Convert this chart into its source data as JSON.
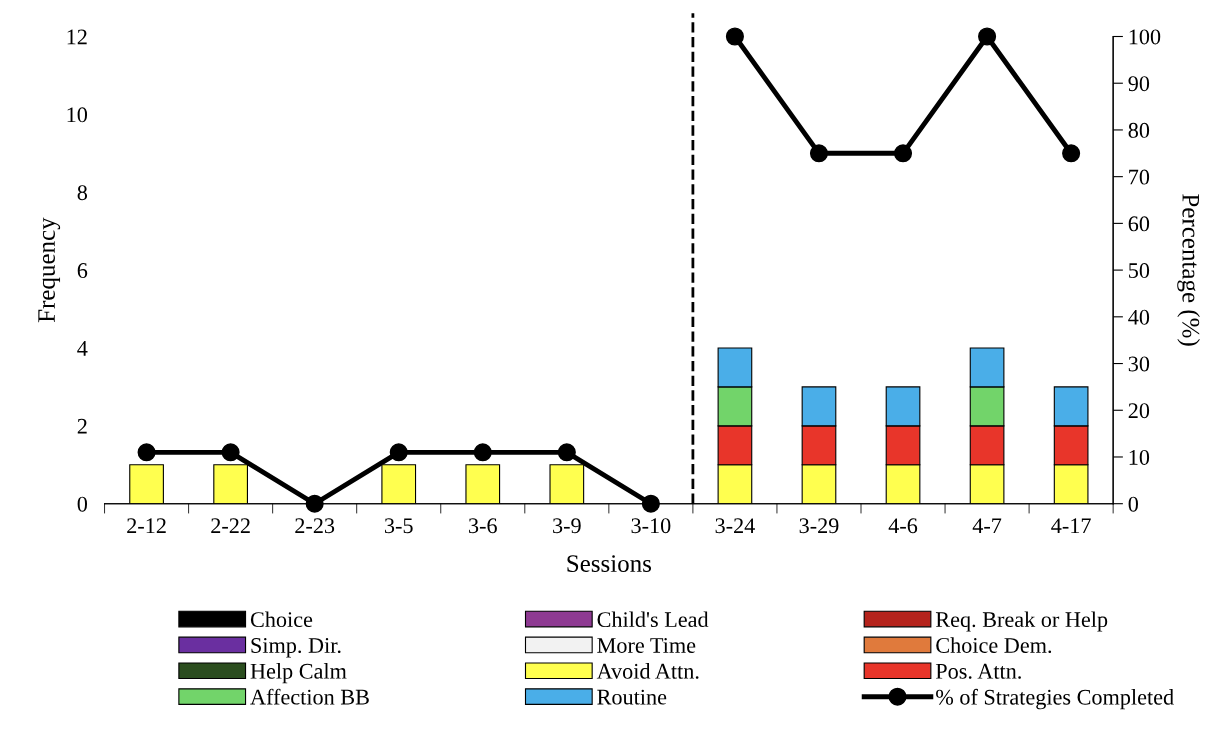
{
  "chart_data": {
    "type": "bar",
    "stacked": true,
    "xlabel": "Sessions",
    "ylabel": "Frequency",
    "y2label": "Percentage (%)",
    "categories": [
      "2-12",
      "2-22",
      "2-23",
      "3-5",
      "3-6",
      "3-9",
      "3-10",
      "3-24",
      "3-29",
      "4-6",
      "4-7",
      "4-17"
    ],
    "ylim": [
      0,
      12
    ],
    "yticks": [
      0,
      2,
      4,
      6,
      8,
      10,
      12
    ],
    "y2lim": [
      0,
      100
    ],
    "y2ticks": [
      0,
      10,
      20,
      30,
      40,
      50,
      60,
      70,
      80,
      90,
      100
    ],
    "grid": false,
    "legend": "bottom",
    "series": [
      {
        "name": "Choice",
        "color": "#000000",
        "values": [
          0,
          0,
          0,
          0,
          0,
          0,
          0,
          0,
          0,
          0,
          0,
          0
        ]
      },
      {
        "name": "Child's Lead",
        "color": "#8e3a92",
        "values": [
          0,
          0,
          0,
          0,
          0,
          0,
          0,
          0,
          0,
          0,
          0,
          0
        ]
      },
      {
        "name": "Req. Break or Help",
        "color": "#b5231c",
        "values": [
          0,
          0,
          0,
          0,
          0,
          0,
          0,
          0,
          0,
          0,
          0,
          0
        ]
      },
      {
        "name": "Simp. Dir.",
        "color": "#6a2fa0",
        "values": [
          0,
          0,
          0,
          0,
          0,
          0,
          0,
          0,
          0,
          0,
          0,
          0
        ]
      },
      {
        "name": "More Time",
        "color": "#f2f2f2",
        "values": [
          0,
          0,
          0,
          0,
          0,
          0,
          0,
          0,
          0,
          0,
          0,
          0
        ]
      },
      {
        "name": "Choice Dem.",
        "color": "#e07a3c",
        "values": [
          0,
          0,
          0,
          0,
          0,
          0,
          0,
          0,
          0,
          0,
          0,
          0
        ]
      },
      {
        "name": "Help Calm",
        "color": "#2b4d1f",
        "values": [
          0,
          0,
          0,
          0,
          0,
          0,
          0,
          0,
          0,
          0,
          0,
          0
        ]
      },
      {
        "name": "Avoid Attn.",
        "color": "#ffff4f",
        "values": [
          1,
          1,
          0,
          1,
          1,
          1,
          0,
          1,
          1,
          1,
          1,
          1
        ]
      },
      {
        "name": "Pos. Attn.",
        "color": "#e8352a",
        "values": [
          0,
          0,
          0,
          0,
          0,
          0,
          0,
          1,
          1,
          1,
          1,
          1
        ]
      },
      {
        "name": "Affection BB",
        "color": "#72d46a",
        "values": [
          0,
          0,
          0,
          0,
          0,
          0,
          0,
          1,
          0,
          0,
          1,
          0
        ]
      },
      {
        "name": "Routine",
        "color": "#4aaee8",
        "values": [
          0,
          0,
          0,
          0,
          0,
          0,
          0,
          1,
          1,
          1,
          1,
          1
        ]
      },
      {
        "name": "% of Strategies Completed",
        "type": "line",
        "axis": "y2",
        "color": "#000000",
        "marker": "circle",
        "line_style": "solid",
        "values": [
          11,
          11,
          0,
          11,
          11,
          11,
          0,
          null,
          null,
          null,
          null,
          null
        ]
      },
      {
        "type": "line",
        "axis": "y2",
        "color": "#000000",
        "marker": "circle",
        "line_style": "solid",
        "values": [
          null,
          null,
          null,
          null,
          null,
          null,
          null,
          100,
          75,
          75,
          100,
          75
        ]
      }
    ]
  }
}
